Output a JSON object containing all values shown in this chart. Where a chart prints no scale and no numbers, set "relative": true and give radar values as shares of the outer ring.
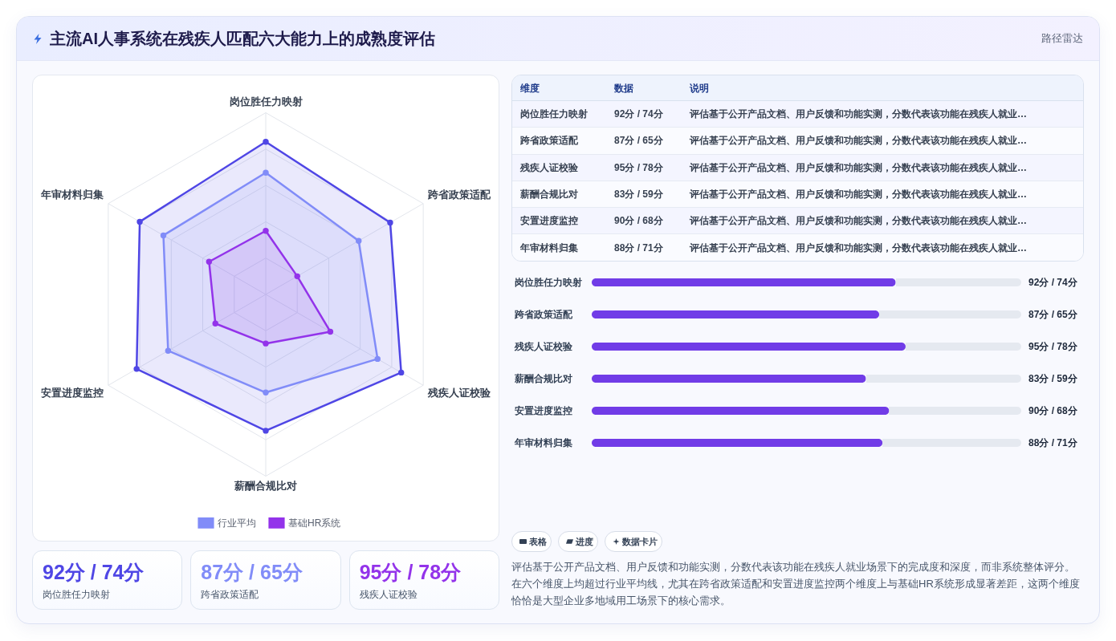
{
  "chart_data": [
    {
      "type": "other",
      "title": "主流AI人事系统在残疾人匹配六大能力上的成熟度评估",
      "subtitle": "路径雷达"
    },
    {
      "type": "radar",
      "categories": [
        "岗位胜任力映射",
        "跨省政策适配",
        "残疾人证校验",
        "薪酬合规比对",
        "安置进度监控",
        "年审材料归集"
      ],
      "relative": true,
      "series": [
        {
          "color": "#4f46e5",
          "values": [
            0.84,
            0.79,
            0.86,
            0.75,
            0.82,
            0.8
          ]
        },
        {
          "name": "行业平均",
          "color": "#818cf8",
          "values": [
            0.67,
            0.59,
            0.71,
            0.54,
            0.62,
            0.65
          ]
        },
        {
          "name": "基础HR系统",
          "color": "#9333ea",
          "values": [
            0.35,
            0.2,
            0.41,
            0.27,
            0.32,
            0.36
          ]
        }
      ],
      "grid": true,
      "legend": "bottom",
      "marker": "circle"
    },
    {
      "type": "other",
      "categories": [
        "岗位胜任力映射",
        "跨省政策适配",
        "残疾人证校验",
        "薪酬合规比对",
        "安置进度监控",
        "年审材料归集"
      ],
      "value_labels": [
        "92分 / 74分",
        "87分 / 65分",
        "95分 / 78分",
        "83分 / 59分",
        "90分 / 68分",
        "88分 / 71分"
      ],
      "annotations": [
        "维度",
        "数据",
        "说明",
        "评估基于公开产品文档、用户反馈和功能实测，分数代表该功能在残疾人就业…",
        "评估基于公开产品文档、用户反馈和功能实测，分数代表该功能在残疾人就业…",
        "评估基于公开产品文档、用户反馈和功能实测，分数代表该功能在残疾人就业…",
        "评估基于公开产品文档、用户反馈和功能实测，分数代表该功能在残疾人就业…",
        "评估基于公开产品文档、用户反馈和功能实测，分数代表该功能在残疾人就业…",
        "评估基于公开产品文档、用户反馈和功能实测，分数代表该功能在残疾人就业…"
      ]
    },
    {
      "type": "bar",
      "orientation": "horizontal",
      "categories": [
        "岗位胜任力映射",
        "跨省政策适配",
        "残疾人证校验",
        "薪酬合规比对",
        "安置进度监控",
        "年审材料归集"
      ],
      "values": [
        92,
        87,
        95,
        83,
        90,
        88
      ],
      "value_labels": [
        "92分 / 74分",
        "87分 / 65分",
        "95分 / 78分",
        "83分 / 59分",
        "90分 / 68分",
        "88分 / 71分"
      ],
      "color": "#713ce7",
      "xlim": [
        0,
        130
      ],
      "tick_labels": "y"
    },
    {
      "type": "other",
      "categories": [
        "岗位胜任力映射",
        "跨省政策适配",
        "残疾人证校验"
      ],
      "value_labels": [
        "92分 / 74分",
        "87分 / 65分",
        "95分 / 78分"
      ]
    },
    {
      "type": "other",
      "annotations": [
        "表格",
        "进度",
        "数据卡片",
        "评估基于公开产品文档、用户反馈和功能实测，分数代表该功能在残疾人就业场景下的完成度和深度，而非系统整体评分。在六个维度上均超过行业平均线，尤其在跨省政策适配和安置进度监控两个维度上与基础HR系统形成显著差距，这两个维度恰恰是大型企业多地域用工场景下的核心需求。"
      ]
    }
  ]
}
